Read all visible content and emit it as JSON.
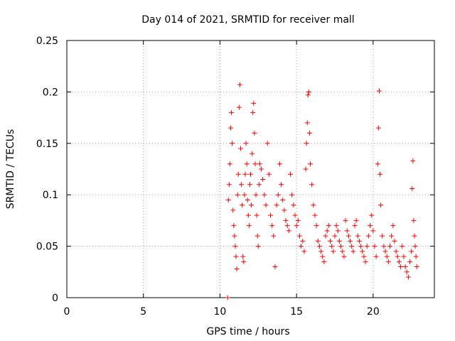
{
  "chart_data": {
    "type": "scatter",
    "title": "Day 014 of 2021, SRMTID for receiver mall",
    "xlabel": "GPS time / hours",
    "ylabel": "SRMTID / TECUs",
    "xlim": [
      0,
      24
    ],
    "ylim": [
      0,
      0.25
    ],
    "xticks": [
      0,
      5,
      10,
      15,
      20
    ],
    "xtick_labels": [
      "0",
      "5",
      "10",
      "15",
      "20"
    ],
    "yticks": [
      0,
      0.05,
      0.1,
      0.15,
      0.2,
      0.25
    ],
    "ytick_labels": [
      "0",
      "0.05",
      "0.1",
      "0.15",
      "0.2",
      "0.25"
    ],
    "grid": true,
    "marker": "+",
    "color": "#ff0000",
    "series": [
      {
        "name": "SRMTID",
        "points": [
          [
            10.5,
            0.0
          ],
          [
            10.55,
            0.095
          ],
          [
            10.6,
            0.11
          ],
          [
            10.65,
            0.13
          ],
          [
            10.7,
            0.165
          ],
          [
            10.75,
            0.18
          ],
          [
            10.8,
            0.15
          ],
          [
            10.85,
            0.085
          ],
          [
            10.9,
            0.07
          ],
          [
            10.95,
            0.06
          ],
          [
            11.0,
            0.05
          ],
          [
            11.05,
            0.04
          ],
          [
            11.1,
            0.028
          ],
          [
            11.15,
            0.1
          ],
          [
            11.2,
            0.12
          ],
          [
            11.25,
            0.185
          ],
          [
            11.3,
            0.207
          ],
          [
            11.35,
            0.145
          ],
          [
            11.4,
            0.11
          ],
          [
            11.45,
            0.09
          ],
          [
            11.5,
            0.04
          ],
          [
            11.55,
            0.035
          ],
          [
            11.6,
            0.1
          ],
          [
            11.65,
            0.12
          ],
          [
            11.7,
            0.15
          ],
          [
            11.75,
            0.13
          ],
          [
            11.8,
            0.095
          ],
          [
            11.85,
            0.08
          ],
          [
            11.9,
            0.07
          ],
          [
            11.95,
            0.11
          ],
          [
            12.0,
            0.12
          ],
          [
            12.05,
            0.09
          ],
          [
            12.1,
            0.14
          ],
          [
            12.15,
            0.18
          ],
          [
            12.2,
            0.189
          ],
          [
            12.25,
            0.16
          ],
          [
            12.3,
            0.13
          ],
          [
            12.35,
            0.1
          ],
          [
            12.4,
            0.08
          ],
          [
            12.45,
            0.06
          ],
          [
            12.5,
            0.05
          ],
          [
            12.55,
            0.11
          ],
          [
            12.6,
            0.13
          ],
          [
            12.7,
            0.125
          ],
          [
            12.8,
            0.115
          ],
          [
            12.9,
            0.1
          ],
          [
            13.0,
            0.09
          ],
          [
            13.1,
            0.15
          ],
          [
            13.2,
            0.12
          ],
          [
            13.3,
            0.08
          ],
          [
            13.4,
            0.07
          ],
          [
            13.5,
            0.06
          ],
          [
            13.6,
            0.03
          ],
          [
            13.7,
            0.09
          ],
          [
            13.8,
            0.1
          ],
          [
            13.9,
            0.13
          ],
          [
            14.0,
            0.11
          ],
          [
            14.1,
            0.095
          ],
          [
            14.2,
            0.085
          ],
          [
            14.3,
            0.075
          ],
          [
            14.4,
            0.07
          ],
          [
            14.5,
            0.065
          ],
          [
            14.6,
            0.12
          ],
          [
            14.7,
            0.1
          ],
          [
            14.8,
            0.09
          ],
          [
            14.9,
            0.08
          ],
          [
            15.0,
            0.07
          ],
          [
            15.1,
            0.075
          ],
          [
            15.2,
            0.06
          ],
          [
            15.3,
            0.05
          ],
          [
            15.4,
            0.055
          ],
          [
            15.5,
            0.045
          ],
          [
            15.6,
            0.125
          ],
          [
            15.65,
            0.15
          ],
          [
            15.7,
            0.17
          ],
          [
            15.75,
            0.197
          ],
          [
            15.8,
            0.2
          ],
          [
            15.85,
            0.16
          ],
          [
            15.9,
            0.13
          ],
          [
            16.0,
            0.11
          ],
          [
            16.1,
            0.09
          ],
          [
            16.2,
            0.08
          ],
          [
            16.3,
            0.07
          ],
          [
            16.4,
            0.055
          ],
          [
            16.5,
            0.05
          ],
          [
            16.6,
            0.045
          ],
          [
            16.7,
            0.04
          ],
          [
            16.8,
            0.035
          ],
          [
            16.9,
            0.06
          ],
          [
            17.0,
            0.065
          ],
          [
            17.1,
            0.07
          ],
          [
            17.2,
            0.055
          ],
          [
            17.3,
            0.05
          ],
          [
            17.4,
            0.045
          ],
          [
            17.5,
            0.06
          ],
          [
            17.6,
            0.07
          ],
          [
            17.7,
            0.065
          ],
          [
            17.8,
            0.055
          ],
          [
            17.9,
            0.05
          ],
          [
            18.0,
            0.045
          ],
          [
            18.1,
            0.04
          ],
          [
            18.2,
            0.075
          ],
          [
            18.3,
            0.065
          ],
          [
            18.4,
            0.06
          ],
          [
            18.5,
            0.055
          ],
          [
            18.6,
            0.05
          ],
          [
            18.7,
            0.045
          ],
          [
            18.8,
            0.07
          ],
          [
            18.9,
            0.075
          ],
          [
            19.0,
            0.06
          ],
          [
            19.1,
            0.055
          ],
          [
            19.2,
            0.05
          ],
          [
            19.3,
            0.045
          ],
          [
            19.4,
            0.04
          ],
          [
            19.5,
            0.035
          ],
          [
            19.6,
            0.05
          ],
          [
            19.7,
            0.06
          ],
          [
            19.8,
            0.07
          ],
          [
            19.9,
            0.08
          ],
          [
            20.0,
            0.065
          ],
          [
            20.1,
            0.05
          ],
          [
            20.2,
            0.04
          ],
          [
            20.3,
            0.13
          ],
          [
            20.35,
            0.165
          ],
          [
            20.4,
            0.201
          ],
          [
            20.45,
            0.12
          ],
          [
            20.5,
            0.09
          ],
          [
            20.6,
            0.06
          ],
          [
            20.7,
            0.05
          ],
          [
            20.8,
            0.045
          ],
          [
            20.9,
            0.04
          ],
          [
            21.0,
            0.035
          ],
          [
            21.1,
            0.05
          ],
          [
            21.2,
            0.06
          ],
          [
            21.3,
            0.07
          ],
          [
            21.4,
            0.055
          ],
          [
            21.5,
            0.045
          ],
          [
            21.6,
            0.04
          ],
          [
            21.7,
            0.035
          ],
          [
            21.8,
            0.03
          ],
          [
            21.9,
            0.05
          ],
          [
            22.0,
            0.04
          ],
          [
            22.1,
            0.03
          ],
          [
            22.2,
            0.025
          ],
          [
            22.3,
            0.02
          ],
          [
            22.4,
            0.035
          ],
          [
            22.5,
            0.045
          ],
          [
            22.55,
            0.106
          ],
          [
            22.6,
            0.133
          ],
          [
            22.65,
            0.075
          ],
          [
            22.7,
            0.06
          ],
          [
            22.75,
            0.05
          ],
          [
            22.8,
            0.04
          ],
          [
            22.85,
            0.03
          ]
        ]
      }
    ]
  }
}
